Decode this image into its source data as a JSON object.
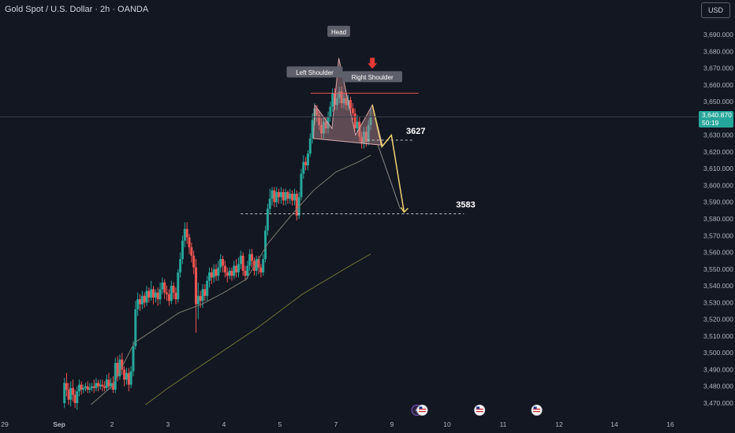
{
  "header": {
    "title": "Gold Spot / U.S. Dollar · 2h · OANDA"
  },
  "currency_button": {
    "label": "USD"
  },
  "last_price": {
    "price": "3,640.870",
    "countdown": "50:19"
  },
  "colors": {
    "background": "#131722",
    "up": "#26a69a",
    "down": "#ef5350",
    "projection": "#f0d36e",
    "pattern_fill": "#b98a8f",
    "neckline": "#e05a5a"
  },
  "chart_data": {
    "type": "candlestick",
    "title": "Gold Spot / U.S. Dollar · 2h · OANDA",
    "x_ticks": [
      {
        "label": "29",
        "pos": 0.0
      },
      {
        "label": "Sep",
        "pos": 1.0
      },
      {
        "label": "2",
        "pos": 2.0
      },
      {
        "label": "3",
        "pos": 3.0
      },
      {
        "label": "4",
        "pos": 4.0
      },
      {
        "label": "5",
        "pos": 5.0
      },
      {
        "label": "7",
        "pos": 6.0
      },
      {
        "label": "9",
        "pos": 7.0
      },
      {
        "label": "10",
        "pos": 8.0
      },
      {
        "label": "11",
        "pos": 9.0
      },
      {
        "label": "12",
        "pos": 10.0
      },
      {
        "label": "14",
        "pos": 11.0
      },
      {
        "label": "16",
        "pos": 12.0
      }
    ],
    "y_ticks": [
      3470,
      3480,
      3490,
      3500,
      3510,
      3520,
      3530,
      3540,
      3550,
      3560,
      3570,
      3580,
      3590,
      3600,
      3610,
      3620,
      3630,
      3640,
      3650,
      3660,
      3670,
      3680,
      3690
    ],
    "ylim": [
      3466,
      3700
    ],
    "xlim": [
      0,
      12.5
    ],
    "candles": [
      [
        1.1,
        3470,
        3482,
        3467,
        3485
      ],
      [
        1.14,
        3482,
        3478,
        3474,
        3488
      ],
      [
        1.18,
        3478,
        3472,
        3469,
        3482
      ],
      [
        1.22,
        3472,
        3479,
        3468,
        3483
      ],
      [
        1.26,
        3479,
        3475,
        3471,
        3484
      ],
      [
        1.3,
        3475,
        3470,
        3467,
        3478
      ],
      [
        1.34,
        3470,
        3477,
        3466,
        3480
      ],
      [
        1.38,
        3477,
        3481,
        3474,
        3484
      ],
      [
        1.42,
        3481,
        3478,
        3475,
        3483
      ],
      [
        1.46,
        3478,
        3479,
        3476,
        3481
      ],
      [
        1.5,
        3479,
        3480,
        3477,
        3482
      ],
      [
        1.54,
        3480,
        3478,
        3476,
        3483
      ],
      [
        1.58,
        3478,
        3479,
        3476,
        3482
      ],
      [
        1.62,
        3479,
        3480,
        3477,
        3482
      ],
      [
        1.66,
        3480,
        3479,
        3476,
        3484
      ],
      [
        1.7,
        3479,
        3482,
        3477,
        3485
      ],
      [
        1.74,
        3482,
        3480,
        3477,
        3484
      ],
      [
        1.78,
        3480,
        3481,
        3478,
        3484
      ],
      [
        1.82,
        3481,
        3480,
        3477,
        3484
      ],
      [
        1.86,
        3480,
        3479,
        3477,
        3483
      ],
      [
        1.9,
        3479,
        3484,
        3477,
        3487
      ],
      [
        1.94,
        3484,
        3480,
        3478,
        3488
      ],
      [
        1.98,
        3480,
        3482,
        3478,
        3485
      ],
      [
        2.02,
        3482,
        3478,
        3476,
        3486
      ],
      [
        2.06,
        3478,
        3494,
        3476,
        3497
      ],
      [
        2.1,
        3494,
        3486,
        3483,
        3498
      ],
      [
        2.14,
        3486,
        3496,
        3484,
        3499
      ],
      [
        2.18,
        3496,
        3490,
        3487,
        3500
      ],
      [
        2.22,
        3490,
        3484,
        3480,
        3492
      ],
      [
        2.26,
        3484,
        3488,
        3481,
        3491
      ],
      [
        2.3,
        3488,
        3481,
        3477,
        3491
      ],
      [
        2.34,
        3481,
        3489,
        3479,
        3492
      ],
      [
        2.38,
        3489,
        3504,
        3486,
        3507
      ],
      [
        2.42,
        3504,
        3526,
        3502,
        3531
      ],
      [
        2.46,
        3526,
        3532,
        3522,
        3536
      ],
      [
        2.5,
        3532,
        3529,
        3525,
        3535
      ],
      [
        2.54,
        3529,
        3534,
        3526,
        3537
      ],
      [
        2.58,
        3534,
        3530,
        3527,
        3536
      ],
      [
        2.62,
        3530,
        3537,
        3528,
        3540
      ],
      [
        2.66,
        3537,
        3533,
        3530,
        3539
      ],
      [
        2.7,
        3533,
        3538,
        3531,
        3543
      ],
      [
        2.74,
        3538,
        3533,
        3529,
        3540
      ],
      [
        2.78,
        3533,
        3536,
        3530,
        3538
      ],
      [
        2.82,
        3536,
        3532,
        3528,
        3539
      ],
      [
        2.86,
        3532,
        3538,
        3529,
        3542
      ],
      [
        2.9,
        3538,
        3542,
        3535,
        3545
      ],
      [
        2.94,
        3542,
        3536,
        3532,
        3544
      ],
      [
        2.98,
        3536,
        3535,
        3531,
        3540
      ],
      [
        3.02,
        3535,
        3531,
        3528,
        3538
      ],
      [
        3.06,
        3531,
        3540,
        3529,
        3543
      ],
      [
        3.1,
        3540,
        3536,
        3532,
        3542
      ],
      [
        3.14,
        3536,
        3532,
        3529,
        3539
      ],
      [
        3.18,
        3532,
        3548,
        3530,
        3550
      ],
      [
        3.22,
        3548,
        3556,
        3545,
        3560
      ],
      [
        3.26,
        3556,
        3567,
        3553,
        3570
      ],
      [
        3.3,
        3567,
        3574,
        3563,
        3578
      ],
      [
        3.34,
        3574,
        3569,
        3565,
        3578
      ],
      [
        3.38,
        3569,
        3563,
        3559,
        3571
      ],
      [
        3.42,
        3563,
        3558,
        3554,
        3566
      ],
      [
        3.46,
        3558,
        3551,
        3547,
        3561
      ],
      [
        3.5,
        3551,
        3529,
        3512,
        3556
      ],
      [
        3.54,
        3529,
        3534,
        3520,
        3542
      ],
      [
        3.58,
        3534,
        3531,
        3527,
        3537
      ],
      [
        3.62,
        3531,
        3538,
        3527,
        3541
      ],
      [
        3.66,
        3538,
        3534,
        3531,
        3541
      ],
      [
        3.7,
        3534,
        3543,
        3531,
        3546
      ],
      [
        3.74,
        3543,
        3548,
        3539,
        3551
      ],
      [
        3.78,
        3548,
        3545,
        3541,
        3551
      ],
      [
        3.82,
        3545,
        3550,
        3542,
        3553
      ],
      [
        3.86,
        3550,
        3546,
        3543,
        3553
      ],
      [
        3.9,
        3546,
        3551,
        3543,
        3555
      ],
      [
        3.94,
        3551,
        3556,
        3548,
        3559
      ],
      [
        3.98,
        3556,
        3552,
        3548,
        3558
      ],
      [
        4.02,
        3552,
        3548,
        3545,
        3555
      ],
      [
        4.06,
        3548,
        3546,
        3542,
        3551
      ],
      [
        4.1,
        3546,
        3549,
        3544,
        3551
      ],
      [
        4.14,
        3549,
        3546,
        3543,
        3551
      ],
      [
        4.18,
        3546,
        3552,
        3544,
        3555
      ],
      [
        4.22,
        3552,
        3548,
        3545,
        3556
      ],
      [
        4.26,
        3548,
        3553,
        3545,
        3557
      ],
      [
        4.3,
        3553,
        3558,
        3550,
        3561
      ],
      [
        4.34,
        3558,
        3549,
        3546,
        3560
      ],
      [
        4.38,
        3549,
        3546,
        3543,
        3552
      ],
      [
        4.42,
        3546,
        3552,
        3544,
        3555
      ],
      [
        4.46,
        3552,
        3559,
        3549,
        3562
      ],
      [
        4.5,
        3559,
        3555,
        3551,
        3562
      ],
      [
        4.54,
        3555,
        3549,
        3546,
        3557
      ],
      [
        4.58,
        3549,
        3556,
        3546,
        3558
      ],
      [
        4.62,
        3556,
        3551,
        3547,
        3558
      ],
      [
        4.66,
        3551,
        3548,
        3545,
        3553
      ],
      [
        4.7,
        3548,
        3556,
        3546,
        3559
      ],
      [
        4.74,
        3556,
        3573,
        3554,
        3576
      ],
      [
        4.78,
        3573,
        3586,
        3570,
        3589
      ],
      [
        4.82,
        3586,
        3592,
        3583,
        3598
      ],
      [
        4.86,
        3592,
        3597,
        3588,
        3599
      ],
      [
        4.9,
        3597,
        3590,
        3587,
        3599
      ],
      [
        4.94,
        3590,
        3596,
        3587,
        3599
      ],
      [
        4.98,
        3596,
        3593,
        3589,
        3598
      ],
      [
        5.02,
        3593,
        3596,
        3589,
        3599
      ],
      [
        5.06,
        3596,
        3591,
        3588,
        3598
      ],
      [
        5.1,
        3591,
        3596,
        3588,
        3598
      ],
      [
        5.14,
        3596,
        3592,
        3589,
        3597
      ],
      [
        5.18,
        3592,
        3595,
        3589,
        3598
      ],
      [
        5.22,
        3595,
        3591,
        3588,
        3597
      ],
      [
        5.26,
        3591,
        3595,
        3588,
        3598
      ],
      [
        5.3,
        3595,
        3582,
        3579,
        3597
      ],
      [
        5.34,
        3582,
        3593,
        3580,
        3596
      ],
      [
        5.38,
        3593,
        3607,
        3591,
        3610
      ],
      [
        5.42,
        3607,
        3614,
        3604,
        3618
      ],
      [
        5.46,
        3614,
        3612,
        3609,
        3617
      ],
      [
        5.5,
        3612,
        3619,
        3609,
        3621
      ],
      [
        5.54,
        3619,
        3628,
        3617,
        3631
      ],
      [
        5.58,
        3628,
        3639,
        3625,
        3643
      ],
      [
        5.62,
        3639,
        3646,
        3636,
        3649
      ],
      [
        5.66,
        3646,
        3642,
        3638,
        3648
      ],
      [
        5.7,
        3642,
        3636,
        3633,
        3645
      ],
      [
        5.74,
        3636,
        3631,
        3628,
        3640
      ],
      [
        5.78,
        3631,
        3638,
        3628,
        3641
      ],
      [
        5.82,
        3638,
        3634,
        3631,
        3641
      ],
      [
        5.86,
        3634,
        3641,
        3631,
        3644
      ],
      [
        5.9,
        3641,
        3647,
        3638,
        3650
      ],
      [
        5.94,
        3647,
        3655,
        3644,
        3658
      ],
      [
        5.98,
        3655,
        3648,
        3645,
        3658
      ],
      [
        6.02,
        3648,
        3652,
        3645,
        3655
      ],
      [
        6.06,
        3652,
        3656,
        3649,
        3659
      ],
      [
        6.1,
        3656,
        3649,
        3646,
        3659
      ],
      [
        6.14,
        3649,
        3652,
        3646,
        3655
      ],
      [
        6.18,
        3652,
        3648,
        3645,
        3655
      ],
      [
        6.22,
        3648,
        3651,
        3645,
        3654
      ],
      [
        6.26,
        3651,
        3646,
        3643,
        3653
      ],
      [
        6.3,
        3646,
        3643,
        3639,
        3649
      ],
      [
        6.34,
        3643,
        3634,
        3631,
        3646
      ],
      [
        6.38,
        3634,
        3638,
        3631,
        3642
      ],
      [
        6.42,
        3638,
        3629,
        3626,
        3641
      ],
      [
        6.46,
        3629,
        3625,
        3622,
        3632
      ],
      [
        6.5,
        3625,
        3632,
        3622,
        3635
      ],
      [
        6.54,
        3632,
        3626,
        3623,
        3635
      ],
      [
        6.58,
        3626,
        3636,
        3624,
        3639
      ],
      [
        6.62,
        3636,
        3641,
        3633,
        3646
      ]
    ],
    "moving_averages": [
      {
        "points": [
          [
            1.6,
            3469
          ],
          [
            2.0,
            3480
          ],
          [
            2.4,
            3506
          ],
          [
            2.8,
            3515
          ],
          [
            3.2,
            3524
          ],
          [
            3.6,
            3529
          ],
          [
            4.0,
            3536
          ],
          [
            4.4,
            3544
          ],
          [
            4.8,
            3566
          ],
          [
            5.2,
            3582
          ],
          [
            5.6,
            3597
          ],
          [
            6.0,
            3608
          ],
          [
            6.4,
            3614
          ],
          [
            6.62,
            3618
          ]
        ]
      },
      {
        "points": [
          [
            2.6,
            3469
          ],
          [
            3.0,
            3479
          ],
          [
            3.4,
            3488
          ],
          [
            3.8,
            3497
          ],
          [
            4.2,
            3506
          ],
          [
            4.6,
            3515
          ],
          [
            5.0,
            3525
          ],
          [
            5.4,
            3535
          ],
          [
            5.8,
            3543
          ],
          [
            6.2,
            3551
          ],
          [
            6.62,
            3559
          ]
        ]
      }
    ],
    "current_price": 3640.87,
    "pattern": {
      "left_shoulder": {
        "label": "Left Shoulder",
        "x": 5.62,
        "y": 3648
      },
      "head": {
        "label": "Head",
        "x": 6.05,
        "y": 3676
      },
      "right_shoulder": {
        "label": "Right Shoulder",
        "x": 6.65,
        "y": 3648
      },
      "neckline_left": [
        5.6,
        3628
      ],
      "neckline_right": [
        6.83,
        3624
      ],
      "resistance_y": 3648,
      "resistance_x": [
        5.55,
        7.48
      ]
    },
    "levels": [
      {
        "label": "3627",
        "value": 3627,
        "x_start": 6.56,
        "x_end": 7.4
      },
      {
        "label": "3583",
        "value": 3583,
        "x_start": 4.3,
        "x_end": 8.3
      }
    ],
    "projection": [
      [
        6.65,
        3648
      ],
      [
        6.82,
        3623
      ],
      [
        6.99,
        3630
      ],
      [
        7.22,
        3584
      ]
    ],
    "event_icons": [
      {
        "icon": "lightning-icon",
        "x": 7.45
      },
      {
        "icon": "us-flag-icon",
        "x": 7.55
      },
      {
        "icon": "us-flag-icon",
        "x": 8.58
      },
      {
        "icon": "us-flag-icon",
        "x": 9.6
      }
    ]
  }
}
